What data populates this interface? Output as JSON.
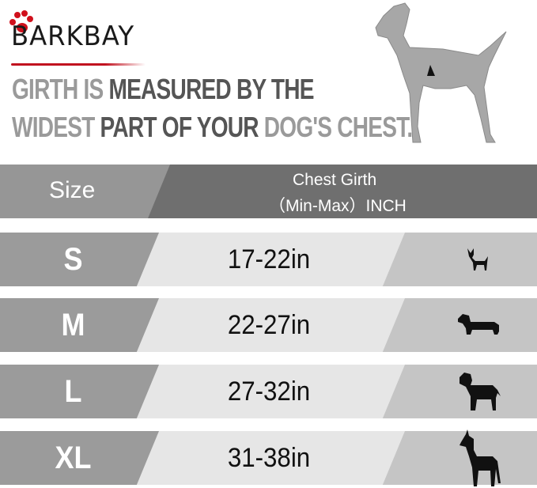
{
  "brand": {
    "name": "BARKBAY",
    "accent": "#c1121f"
  },
  "headline": {
    "line1": [
      {
        "text": "GIRTH IS ",
        "tone": "light"
      },
      {
        "text": "MEASURED BY THE",
        "tone": "dark"
      }
    ],
    "line2": [
      {
        "text": "WIDEST ",
        "tone": "light"
      },
      {
        "text": "PART OF YOUR ",
        "tone": "dark"
      },
      {
        "text": "DOG'S CHEST.",
        "tone": "light"
      }
    ]
  },
  "table": {
    "header": {
      "size": "Size",
      "girth_line1": "Chest Girth",
      "girth_line2": "（Min-Max）INCH"
    },
    "rows": [
      {
        "size": "S",
        "girth": "17-22in",
        "breed_icon": "chihuahua-icon"
      },
      {
        "size": "M",
        "girth": "22-27in",
        "breed_icon": "dachshund-icon"
      },
      {
        "size": "L",
        "girth": "27-32in",
        "breed_icon": "labrador-icon"
      },
      {
        "size": "XL",
        "girth": "31-38in",
        "breed_icon": "great-dane-icon"
      }
    ]
  },
  "colors": {
    "header_left": "#969696",
    "header_right": "#6f6f6f",
    "row_left": "#9b9b9b",
    "row_mid": "#e6e6e6",
    "row_right": "#c5c5c5"
  }
}
